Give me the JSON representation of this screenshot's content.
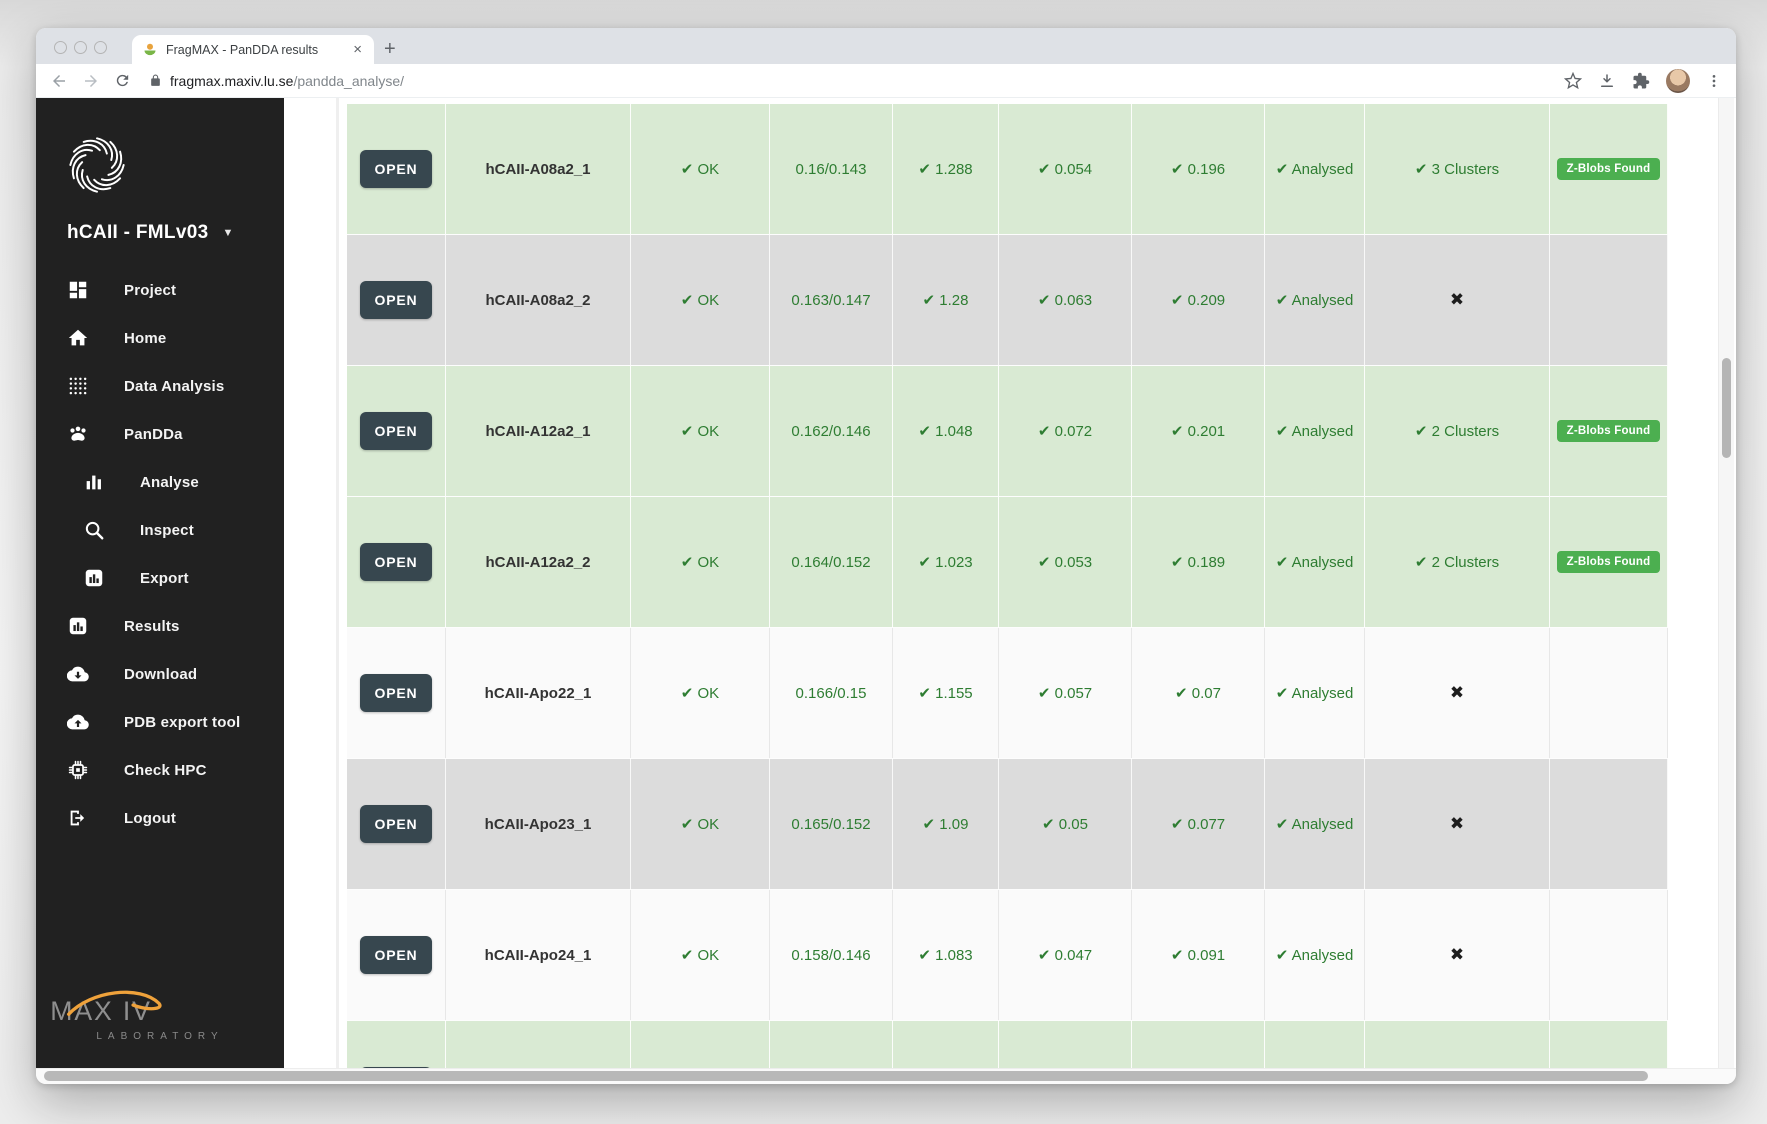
{
  "browser": {
    "tab_title": "FragMAX - PanDDA results",
    "close_tab_glyph": "×",
    "new_tab_glyph": "+",
    "url_host": "fragmax.maxiv.lu.se",
    "url_path": "/pandda_analyse/"
  },
  "sidebar": {
    "project_title": "hCAII - FMLv03",
    "caret_glyph": "▼",
    "items": [
      {
        "label": "Project",
        "icon": "dashboard-icon",
        "indent": false
      },
      {
        "label": "Home",
        "icon": "home-icon",
        "indent": false
      },
      {
        "label": "Data Analysis",
        "icon": "grid-dots-icon",
        "indent": false
      },
      {
        "label": "PanDDa",
        "icon": "paw-icon",
        "indent": false
      },
      {
        "label": "Analyse",
        "icon": "bar-chart-icon",
        "indent": true
      },
      {
        "label": "Inspect",
        "icon": "search-icon",
        "indent": true
      },
      {
        "label": "Export",
        "icon": "chart-box-icon",
        "indent": true
      },
      {
        "label": "Results",
        "icon": "chart-box-icon",
        "indent": false
      },
      {
        "label": "Download",
        "icon": "cloud-download-icon",
        "indent": false
      },
      {
        "label": "PDB export tool",
        "icon": "cloud-upload-icon",
        "indent": false
      },
      {
        "label": "Check HPC",
        "icon": "chip-icon",
        "indent": false
      },
      {
        "label": "Logout",
        "icon": "logout-icon",
        "indent": false
      }
    ],
    "footer_logo_line1": "MAX IV",
    "footer_logo_line2": "LABORATORY"
  },
  "table": {
    "open_label": "OPEN",
    "rows": [
      {
        "name": "hCAII-A08a2_1",
        "status": "✔ OK",
        "r_factors": "0.16/0.143",
        "v1": "✔ 1.288",
        "v2": "✔ 0.054",
        "v3": "✔ 0.196",
        "state": "✔ Analysed",
        "clusters": "✔ 3 Clusters",
        "badge": "Z-Blobs Found",
        "tone": "green"
      },
      {
        "name": "hCAII-A08a2_2",
        "status": "✔ OK",
        "r_factors": "0.163/0.147",
        "v1": "✔ 1.28",
        "v2": "✔ 0.063",
        "v3": "✔ 0.209",
        "state": "✔ Analysed",
        "clusters": "✖",
        "badge": "",
        "tone": "gray"
      },
      {
        "name": "hCAII-A12a2_1",
        "status": "✔ OK",
        "r_factors": "0.162/0.146",
        "v1": "✔ 1.048",
        "v2": "✔ 0.072",
        "v3": "✔ 0.201",
        "state": "✔ Analysed",
        "clusters": "✔ 2 Clusters",
        "badge": "Z-Blobs Found",
        "tone": "green"
      },
      {
        "name": "hCAII-A12a2_2",
        "status": "✔ OK",
        "r_factors": "0.164/0.152",
        "v1": "✔ 1.023",
        "v2": "✔ 0.053",
        "v3": "✔ 0.189",
        "state": "✔ Analysed",
        "clusters": "✔ 2 Clusters",
        "badge": "Z-Blobs Found",
        "tone": "green"
      },
      {
        "name": "hCAII-Apo22_1",
        "status": "✔ OK",
        "r_factors": "0.166/0.15",
        "v1": "✔ 1.155",
        "v2": "✔ 0.057",
        "v3": "✔ 0.07",
        "state": "✔ Analysed",
        "clusters": "✖",
        "badge": "",
        "tone": "white"
      },
      {
        "name": "hCAII-Apo23_1",
        "status": "✔ OK",
        "r_factors": "0.165/0.152",
        "v1": "✔ 1.09",
        "v2": "✔ 0.05",
        "v3": "✔ 0.077",
        "state": "✔ Analysed",
        "clusters": "✖",
        "badge": "",
        "tone": "gray"
      },
      {
        "name": "hCAII-Apo24_1",
        "status": "✔ OK",
        "r_factors": "0.158/0.146",
        "v1": "✔ 1.083",
        "v2": "✔ 0.047",
        "v3": "✔ 0.091",
        "state": "✔ Analysed",
        "clusters": "✖",
        "badge": "",
        "tone": "white"
      },
      {
        "name": "",
        "status": "",
        "r_factors": "",
        "v1": "",
        "v2": "",
        "v3": "",
        "state": "",
        "clusters": "",
        "badge": "",
        "tone": "green",
        "partial": true
      }
    ]
  },
  "colors": {
    "accent_green": "#4caf50",
    "row_green": "#d9ead3",
    "row_gray": "#dcdcdc",
    "row_white": "#fafafa",
    "text_green": "#2e7d32",
    "sidebar_bg": "#212121",
    "button_bg": "#37474f",
    "brand_orange": "#efa23b"
  }
}
